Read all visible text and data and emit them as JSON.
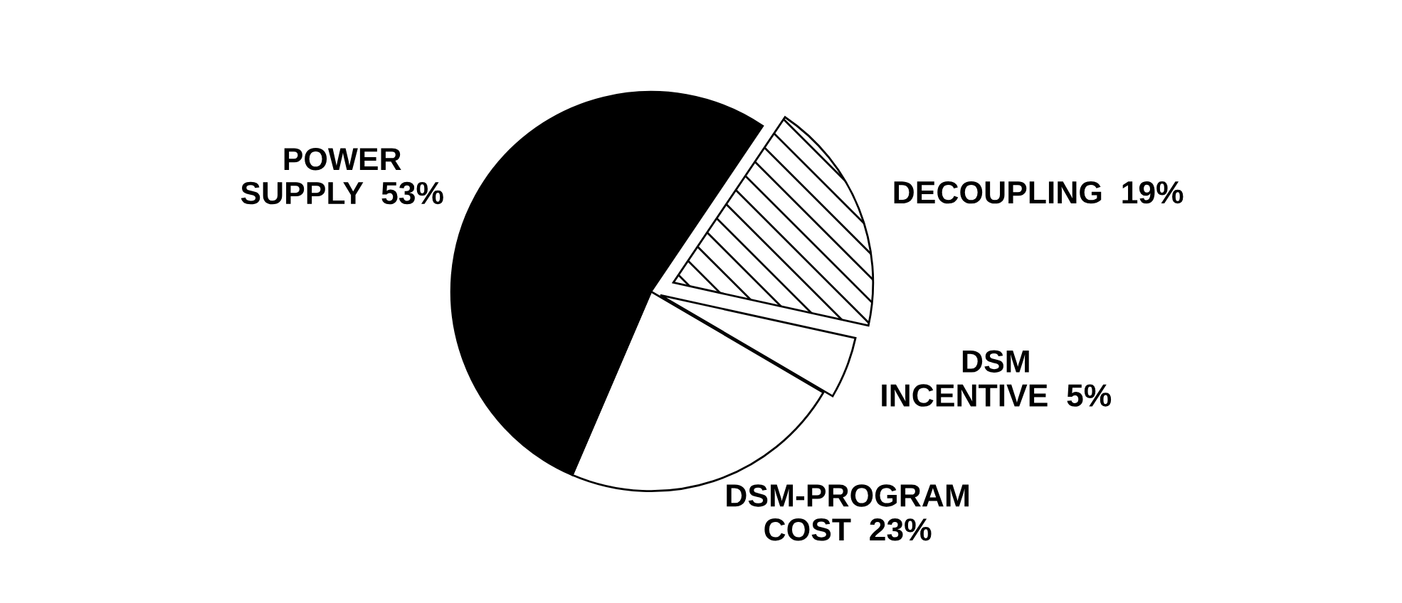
{
  "chart_data": {
    "type": "pie",
    "categories": [
      "DECOUPLING",
      "DSM INCENTIVE",
      "DSM-PROGRAM COST",
      "POWER SUPPLY"
    ],
    "values": [
      19,
      5,
      23,
      53
    ],
    "value_labels": [
      "19%",
      "5%",
      "23%",
      "53%"
    ],
    "colors": [
      "#ffffff",
      "#ffffff",
      "#ffffff",
      "#000000"
    ]
  }
}
